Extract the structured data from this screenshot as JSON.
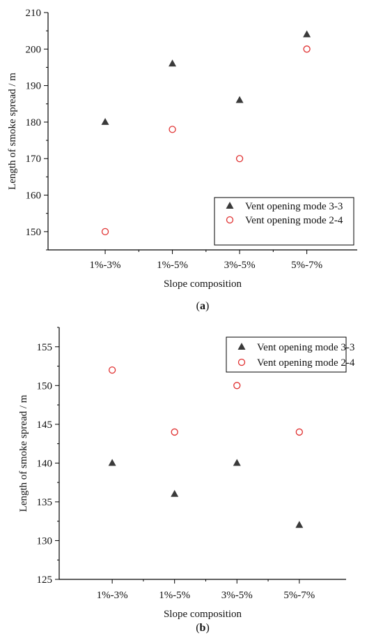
{
  "colors": {
    "series_a": "#3a3a3a",
    "series_b": "#e03030",
    "axis": "#000000"
  },
  "chart_data": [
    {
      "type": "scatter",
      "panel_label": "(a)",
      "categories": [
        "1%-3%",
        "1%-5%",
        "3%-5%",
        "5%-7%"
      ],
      "xlabel": "Slope composition",
      "ylabel": "Length of smoke spread / m",
      "ylim": [
        145,
        210
      ],
      "yticks": [
        150,
        160,
        170,
        180,
        190,
        200,
        210
      ],
      "grid": false,
      "legend_position": "bottom-right",
      "series": [
        {
          "name": "Vent opening mode 3-3",
          "marker": "filled-triangle",
          "values": [
            180,
            196,
            186,
            204
          ]
        },
        {
          "name": "Vent opening mode 2-4",
          "marker": "open-circle",
          "values": [
            150,
            178,
            170,
            200
          ]
        }
      ]
    },
    {
      "type": "scatter",
      "panel_label": "(b)",
      "categories": [
        "1%-3%",
        "1%-5%",
        "3%-5%",
        "5%-7%"
      ],
      "xlabel": "Slope composition",
      "ylabel": "Length of smoke spread / m",
      "ylim": [
        125,
        157.5
      ],
      "yticks": [
        125,
        130,
        135,
        140,
        145,
        150,
        155
      ],
      "grid": false,
      "legend_position": "top-right",
      "series": [
        {
          "name": "Vent opening mode 3-3",
          "marker": "filled-triangle",
          "values": [
            140,
            136,
            140,
            132
          ]
        },
        {
          "name": "Vent opening mode 2-4",
          "marker": "open-circle",
          "values": [
            152,
            144,
            150,
            144
          ]
        }
      ]
    }
  ]
}
